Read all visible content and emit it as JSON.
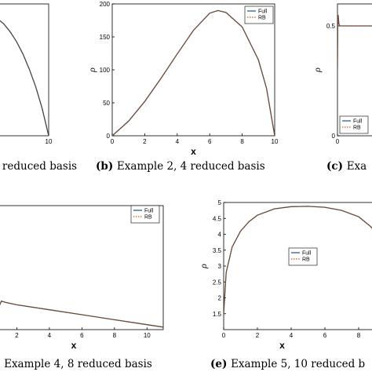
{
  "styles": {
    "full_color": "#1f4e9c",
    "rb_color": "#d9541e",
    "curve_overlay": "#444444"
  },
  "chart_data": [
    {
      "type": "line",
      "panel": "a",
      "xlim": [
        0,
        10
      ],
      "ylim": [
        0,
        200
      ],
      "xticks": [
        10
      ],
      "yticks": [],
      "xlabel": "",
      "ylabel": "",
      "legend": [],
      "caption_tag": "",
      "caption_text": "d reduced basis",
      "series": [
        {
          "name": "Full",
          "style": "solid",
          "x": [
            0,
            1,
            2,
            3,
            4,
            5,
            6,
            7,
            8,
            9,
            10
          ],
          "y": [
            185,
            183,
            178,
            170,
            158,
            143,
            124,
            101,
            74,
            41,
            0
          ]
        }
      ]
    },
    {
      "type": "line",
      "panel": "b",
      "xlim": [
        0,
        10
      ],
      "ylim": [
        0,
        200
      ],
      "xticks": [
        0,
        2,
        4,
        6,
        8,
        10
      ],
      "yticks": [
        0,
        50,
        100,
        150,
        200
      ],
      "xlabel": "x",
      "ylabel": "ρ",
      "legend": [
        "Full",
        "RB"
      ],
      "caption_tag": "(b)",
      "caption_text": "Example 2, 4 reduced basis",
      "series": [
        {
          "name": "Full",
          "style": "solid",
          "x": [
            0,
            1,
            2,
            3,
            4,
            5,
            6,
            6.5,
            7,
            8,
            9,
            9.5,
            10
          ],
          "y": [
            0,
            22,
            52,
            87,
            124,
            160,
            186,
            190,
            187,
            165,
            115,
            72,
            0
          ]
        },
        {
          "name": "RB",
          "style": "dotted",
          "x": [
            0,
            1,
            2,
            3,
            4,
            5,
            6,
            6.5,
            7,
            8,
            9,
            9.5,
            10
          ],
          "y": [
            0,
            22,
            52,
            87,
            124,
            160,
            186,
            190,
            187,
            165,
            115,
            72,
            0
          ]
        }
      ]
    },
    {
      "type": "line",
      "panel": "c",
      "xlim": [
        0,
        10
      ],
      "ylim": [
        0,
        0.6
      ],
      "xticks": [
        0
      ],
      "yticks": [
        0,
        0.5
      ],
      "xlabel": "",
      "ylabel": "ρ",
      "legend": [
        "Full",
        "RB"
      ],
      "caption_tag": "(c)",
      "caption_text": "Exa",
      "series": [
        {
          "name": "Full",
          "style": "solid",
          "x": [
            0,
            0.05,
            0.1,
            0.2,
            0.3,
            0.5,
            1,
            2,
            4,
            10
          ],
          "y": [
            0.3,
            0.52,
            0.55,
            0.51,
            0.5,
            0.5,
            0.5,
            0.5,
            0.5,
            0.5
          ]
        },
        {
          "name": "RB",
          "style": "dotted",
          "x": [
            0,
            0.05,
            0.1,
            0.2,
            0.3,
            0.5,
            1,
            2,
            4,
            10
          ],
          "y": [
            0.3,
            0.52,
            0.55,
            0.51,
            0.5,
            0.5,
            0.5,
            0.5,
            0.5,
            0.5
          ]
        }
      ]
    },
    {
      "type": "line",
      "panel": "d",
      "xlim": [
        0,
        11
      ],
      "ylim": [
        0,
        1
      ],
      "xticks": [
        2,
        4,
        6,
        8,
        10
      ],
      "yticks": [],
      "xlabel": "x",
      "ylabel": "",
      "legend": [
        "Full",
        "RB"
      ],
      "caption_tag": ")",
      "caption_text": "Example 4, 8 reduced basis",
      "series": [
        {
          "name": "Full",
          "style": "solid",
          "x": [
            0,
            0.3,
            0.6,
            0.8,
            0.95,
            1.05,
            1.3,
            2,
            4,
            6,
            8,
            10,
            11
          ],
          "y": [
            0.48,
            0.32,
            0.22,
            0.19,
            0.2,
            0.23,
            0.22,
            0.2,
            0.16,
            0.12,
            0.08,
            0.04,
            0.02
          ]
        },
        {
          "name": "RB",
          "style": "dotted",
          "x": [
            0,
            0.3,
            0.6,
            0.8,
            0.95,
            1.05,
            1.3,
            2,
            4,
            6,
            8,
            10,
            11
          ],
          "y": [
            0.48,
            0.32,
            0.22,
            0.19,
            0.2,
            0.23,
            0.22,
            0.2,
            0.16,
            0.12,
            0.08,
            0.04,
            0.02
          ]
        }
      ]
    },
    {
      "type": "line",
      "panel": "e",
      "xlim": [
        0,
        10
      ],
      "ylim": [
        1,
        5
      ],
      "xticks": [
        0,
        2,
        4,
        6,
        8
      ],
      "yticks": [
        1.5,
        2,
        2.5,
        3,
        3.5,
        4,
        4.5,
        5
      ],
      "xlabel": "x",
      "ylabel": "ρ",
      "legend": [
        "Full",
        "RB"
      ],
      "caption_tag": "(e)",
      "caption_text": "Example 5, 10 reduced b",
      "series": [
        {
          "name": "Full",
          "style": "solid",
          "x": [
            0,
            0.15,
            0.5,
            1,
            1.5,
            2,
            3,
            4,
            5,
            6,
            7,
            8,
            8.7,
            9.3,
            10
          ],
          "y": [
            1.5,
            2.8,
            3.6,
            4.1,
            4.4,
            4.6,
            4.8,
            4.87,
            4.88,
            4.85,
            4.75,
            4.55,
            4.25,
            3.9,
            3.6
          ]
        },
        {
          "name": "RB",
          "style": "dotted",
          "x": [
            0,
            0.15,
            0.5,
            1,
            1.5,
            2,
            3,
            4,
            5,
            6,
            7,
            8,
            8.7,
            9.3,
            10
          ],
          "y": [
            1.5,
            2.8,
            3.6,
            4.1,
            4.4,
            4.6,
            4.8,
            4.87,
            4.88,
            4.85,
            4.75,
            4.55,
            4.25,
            3.9,
            3.6
          ]
        }
      ]
    }
  ]
}
